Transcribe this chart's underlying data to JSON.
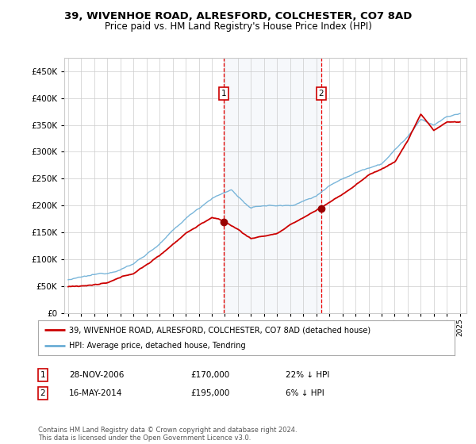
{
  "title": "39, WIVENHOE ROAD, ALRESFORD, COLCHESTER, CO7 8AD",
  "subtitle": "Price paid vs. HM Land Registry's House Price Index (HPI)",
  "ylim": [
    0,
    475000
  ],
  "yticks": [
    0,
    50000,
    100000,
    150000,
    200000,
    250000,
    300000,
    350000,
    400000,
    450000
  ],
  "xlim_start": 1994.7,
  "xlim_end": 2025.5,
  "legend_line1": "39, WIVENHOE ROAD, ALRESFORD, COLCHESTER, CO7 8AD (detached house)",
  "legend_line2": "HPI: Average price, detached house, Tendring",
  "annotation1_date": "28-NOV-2006",
  "annotation1_price": "£170,000",
  "annotation1_hpi": "22% ↓ HPI",
  "annotation1_year": 2006.91,
  "annotation1_value": 170000,
  "annotation2_date": "16-MAY-2014",
  "annotation2_price": "£195,000",
  "annotation2_hpi": "6% ↓ HPI",
  "annotation2_year": 2014.37,
  "annotation2_value": 195000,
  "footer": "Contains HM Land Registry data © Crown copyright and database right 2024.\nThis data is licensed under the Open Government Licence v3.0.",
  "hpi_color": "#6baed6",
  "price_color": "#cc0000",
  "marker_color": "#990000",
  "vline_color": "#ee0000",
  "shade_color": "#dce6f1",
  "background_color": "#ffffff",
  "grid_color": "#cccccc",
  "box_color": "#cc0000"
}
